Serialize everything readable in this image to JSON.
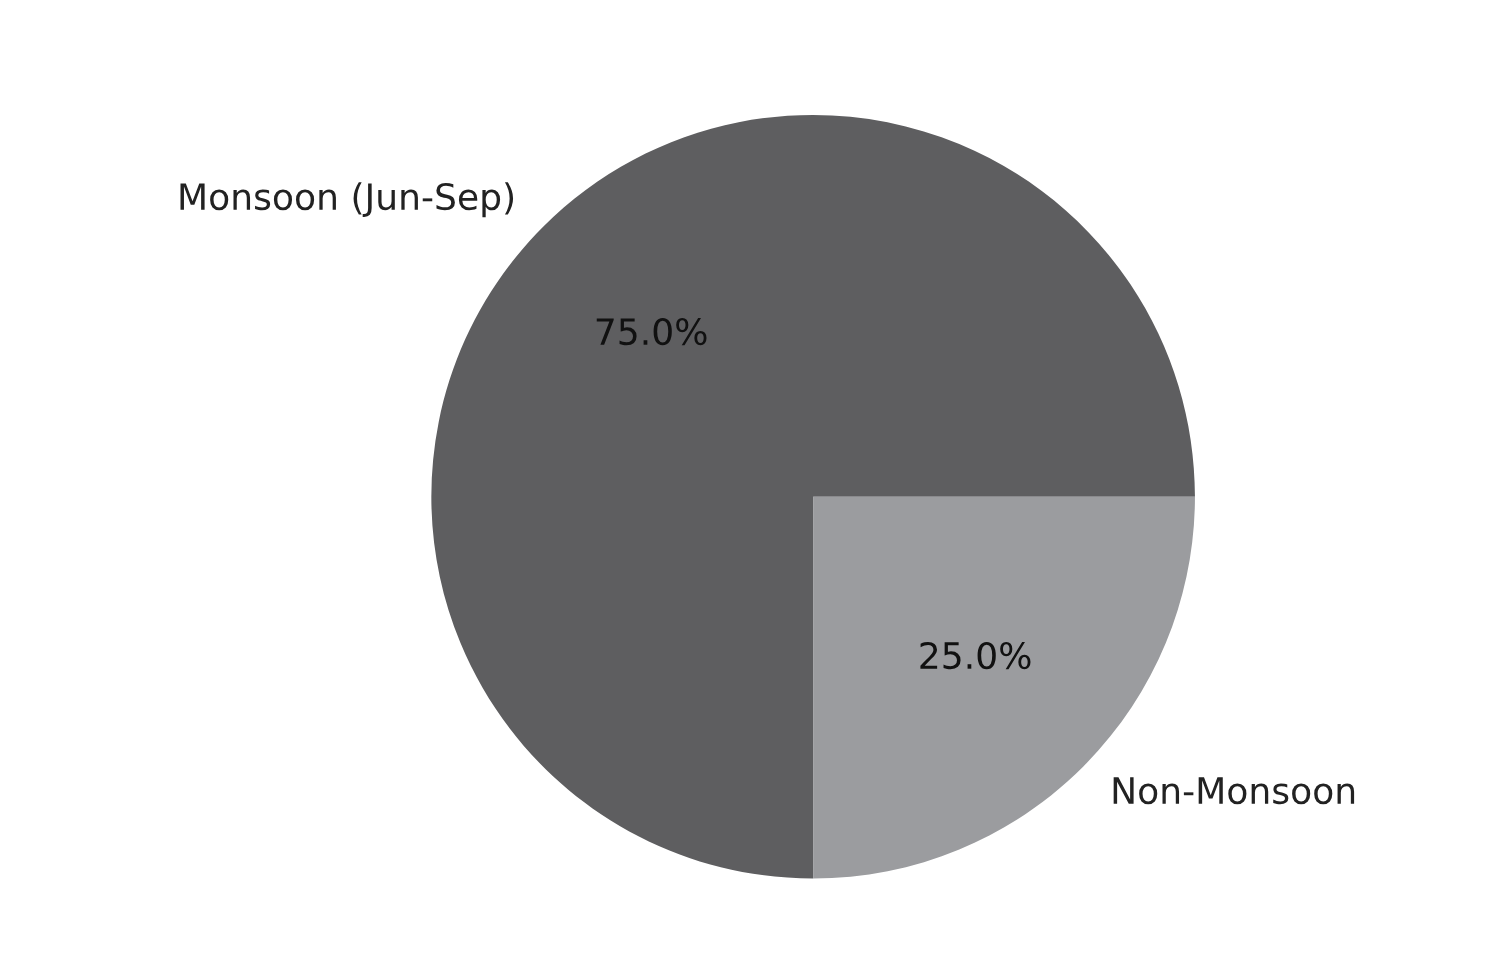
{
  "chart_data": {
    "type": "pie",
    "categories": [
      "Monsoon (Jun-Sep)",
      "Non-Monsoon"
    ],
    "values": [
      75,
      25
    ],
    "colors": [
      "#5e5e60",
      "#9b9c9f"
    ],
    "value_labels": [
      "75.0%",
      "25.0%"
    ]
  }
}
